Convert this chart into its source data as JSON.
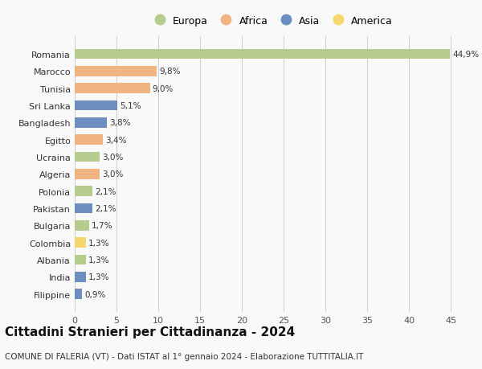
{
  "countries": [
    "Romania",
    "Marocco",
    "Tunisia",
    "Sri Lanka",
    "Bangladesh",
    "Egitto",
    "Ucraina",
    "Algeria",
    "Polonia",
    "Pakistan",
    "Bulgaria",
    "Colombia",
    "Albania",
    "India",
    "Filippine"
  ],
  "values": [
    44.9,
    9.8,
    9.0,
    5.1,
    3.8,
    3.4,
    3.0,
    3.0,
    2.1,
    2.1,
    1.7,
    1.3,
    1.3,
    1.3,
    0.9
  ],
  "labels": [
    "44,9%",
    "9,8%",
    "9,0%",
    "5,1%",
    "3,8%",
    "3,4%",
    "3,0%",
    "3,0%",
    "2,1%",
    "2,1%",
    "1,7%",
    "1,3%",
    "1,3%",
    "1,3%",
    "0,9%"
  ],
  "continent": [
    "Europa",
    "Africa",
    "Africa",
    "Asia",
    "Asia",
    "Africa",
    "Europa",
    "Africa",
    "Europa",
    "Asia",
    "Europa",
    "America",
    "Europa",
    "Asia",
    "Asia"
  ],
  "colors": {
    "Europa": "#b5cc8e",
    "Africa": "#f0b482",
    "Asia": "#6d8fbf",
    "America": "#f5d76e"
  },
  "legend_order": [
    "Europa",
    "Africa",
    "Asia",
    "America"
  ],
  "title": "Cittadini Stranieri per Cittadinanza - 2024",
  "subtitle": "COMUNE DI FALERIA (VT) - Dati ISTAT al 1° gennaio 2024 - Elaborazione TUTTITALIA.IT",
  "xlim": [
    0,
    47
  ],
  "xticks": [
    0,
    5,
    10,
    15,
    20,
    25,
    30,
    35,
    40,
    45
  ],
  "background_color": "#f9f9f9",
  "bar_height": 0.6,
  "title_fontsize": 11,
  "subtitle_fontsize": 7.5,
  "label_fontsize": 7.5,
  "tick_fontsize": 8,
  "legend_fontsize": 9
}
